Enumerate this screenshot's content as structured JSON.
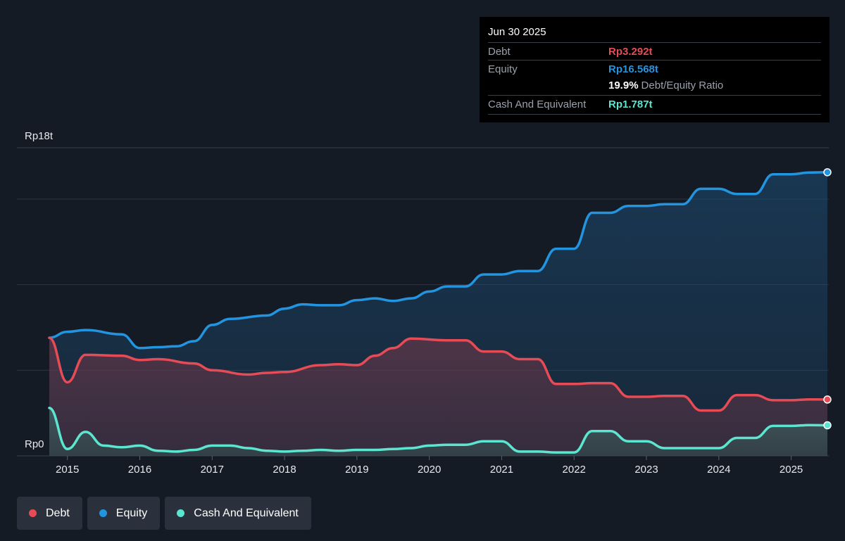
{
  "colors": {
    "background": "#151b24",
    "debt": "#e64b56",
    "equity": "#2394df",
    "cash": "#5ce6d0",
    "grid": "#2e3540",
    "axis_text": "#e6e9ee"
  },
  "tooltip": {
    "date": "Jun 30 2025",
    "debt_label": "Debt",
    "debt_value": "Rp3.292t",
    "equity_label": "Equity",
    "equity_value": "Rp16.568t",
    "ratio_value": "19.9%",
    "ratio_label": "Debt/Equity Ratio",
    "cash_label": "Cash And Equivalent",
    "cash_value": "Rp1.787t"
  },
  "legend": [
    {
      "label": "Debt",
      "color": "#e64b56"
    },
    {
      "label": "Equity",
      "color": "#2394df"
    },
    {
      "label": "Cash And Equivalent",
      "color": "#5ce6d0"
    }
  ],
  "chart_data": {
    "type": "area",
    "y_top_label": "Rp18t",
    "y_bottom_label": "Rp0",
    "ylim": [
      0,
      18
    ],
    "xlim": [
      2014.75,
      2025.5
    ],
    "x_ticks": [
      "2015",
      "2016",
      "2017",
      "2018",
      "2019",
      "2020",
      "2021",
      "2022",
      "2023",
      "2024",
      "2025"
    ],
    "grid": true,
    "series": [
      {
        "name": "Debt",
        "points": [
          [
            2014.75,
            6.9
          ],
          [
            2015.0,
            4.3
          ],
          [
            2015.25,
            5.9
          ],
          [
            2015.75,
            5.85
          ],
          [
            2016.0,
            5.6
          ],
          [
            2016.25,
            5.65
          ],
          [
            2016.75,
            5.4
          ],
          [
            2017.0,
            5.0
          ],
          [
            2017.5,
            4.75
          ],
          [
            2017.75,
            4.85
          ],
          [
            2018.0,
            4.9
          ],
          [
            2018.5,
            5.3
          ],
          [
            2018.75,
            5.35
          ],
          [
            2019.0,
            5.3
          ],
          [
            2019.25,
            5.85
          ],
          [
            2019.5,
            6.3
          ],
          [
            2019.75,
            6.85
          ],
          [
            2020.25,
            6.75
          ],
          [
            2020.5,
            6.75
          ],
          [
            2020.75,
            6.1
          ],
          [
            2021.0,
            6.1
          ],
          [
            2021.25,
            5.65
          ],
          [
            2021.5,
            5.65
          ],
          [
            2021.75,
            4.2
          ],
          [
            2022.0,
            4.2
          ],
          [
            2022.25,
            4.25
          ],
          [
            2022.5,
            4.25
          ],
          [
            2022.75,
            3.45
          ],
          [
            2023.0,
            3.45
          ],
          [
            2023.25,
            3.5
          ],
          [
            2023.5,
            3.5
          ],
          [
            2023.75,
            2.65
          ],
          [
            2024.0,
            2.65
          ],
          [
            2024.25,
            3.55
          ],
          [
            2024.5,
            3.55
          ],
          [
            2024.75,
            3.25
          ],
          [
            2025.0,
            3.25
          ],
          [
            2025.25,
            3.3
          ],
          [
            2025.5,
            3.292
          ]
        ]
      },
      {
        "name": "Equity",
        "points": [
          [
            2014.75,
            6.9
          ],
          [
            2015.0,
            7.25
          ],
          [
            2015.25,
            7.35
          ],
          [
            2015.75,
            7.1
          ],
          [
            2016.0,
            6.3
          ],
          [
            2016.25,
            6.35
          ],
          [
            2016.5,
            6.4
          ],
          [
            2016.75,
            6.7
          ],
          [
            2017.0,
            7.65
          ],
          [
            2017.25,
            8.0
          ],
          [
            2017.75,
            8.2
          ],
          [
            2018.0,
            8.6
          ],
          [
            2018.25,
            8.85
          ],
          [
            2018.5,
            8.8
          ],
          [
            2018.75,
            8.8
          ],
          [
            2019.0,
            9.1
          ],
          [
            2019.25,
            9.2
          ],
          [
            2019.5,
            9.05
          ],
          [
            2019.75,
            9.2
          ],
          [
            2020.0,
            9.6
          ],
          [
            2020.25,
            9.9
          ],
          [
            2020.5,
            9.9
          ],
          [
            2020.75,
            10.6
          ],
          [
            2021.0,
            10.6
          ],
          [
            2021.25,
            10.8
          ],
          [
            2021.5,
            10.8
          ],
          [
            2021.75,
            12.1
          ],
          [
            2022.0,
            12.1
          ],
          [
            2022.25,
            14.2
          ],
          [
            2022.5,
            14.2
          ],
          [
            2022.75,
            14.6
          ],
          [
            2023.0,
            14.6
          ],
          [
            2023.25,
            14.7
          ],
          [
            2023.5,
            14.7
          ],
          [
            2023.75,
            15.6
          ],
          [
            2024.0,
            15.6
          ],
          [
            2024.25,
            15.3
          ],
          [
            2024.5,
            15.3
          ],
          [
            2024.75,
            16.45
          ],
          [
            2025.0,
            16.45
          ],
          [
            2025.25,
            16.55
          ],
          [
            2025.5,
            16.568
          ]
        ]
      },
      {
        "name": "Cash And Equivalent",
        "points": [
          [
            2014.75,
            2.8
          ],
          [
            2015.0,
            0.4
          ],
          [
            2015.25,
            1.4
          ],
          [
            2015.5,
            0.6
          ],
          [
            2015.75,
            0.5
          ],
          [
            2016.0,
            0.6
          ],
          [
            2016.25,
            0.3
          ],
          [
            2016.5,
            0.25
          ],
          [
            2016.75,
            0.35
          ],
          [
            2017.0,
            0.6
          ],
          [
            2017.25,
            0.6
          ],
          [
            2017.5,
            0.45
          ],
          [
            2017.75,
            0.3
          ],
          [
            2018.0,
            0.25
          ],
          [
            2018.25,
            0.3
          ],
          [
            2018.5,
            0.35
          ],
          [
            2018.75,
            0.3
          ],
          [
            2019.0,
            0.35
          ],
          [
            2019.25,
            0.35
          ],
          [
            2019.5,
            0.4
          ],
          [
            2019.75,
            0.45
          ],
          [
            2020.0,
            0.6
          ],
          [
            2020.25,
            0.65
          ],
          [
            2020.5,
            0.65
          ],
          [
            2020.75,
            0.85
          ],
          [
            2021.0,
            0.85
          ],
          [
            2021.25,
            0.25
          ],
          [
            2021.5,
            0.25
          ],
          [
            2021.75,
            0.2
          ],
          [
            2022.0,
            0.2
          ],
          [
            2022.25,
            1.45
          ],
          [
            2022.5,
            1.45
          ],
          [
            2022.75,
            0.85
          ],
          [
            2023.0,
            0.85
          ],
          [
            2023.25,
            0.45
          ],
          [
            2023.5,
            0.45
          ],
          [
            2023.75,
            0.45
          ],
          [
            2024.0,
            0.45
          ],
          [
            2024.25,
            1.05
          ],
          [
            2024.5,
            1.05
          ],
          [
            2024.75,
            1.75
          ],
          [
            2025.0,
            1.75
          ],
          [
            2025.25,
            1.8
          ],
          [
            2025.5,
            1.787
          ]
        ]
      }
    ]
  }
}
